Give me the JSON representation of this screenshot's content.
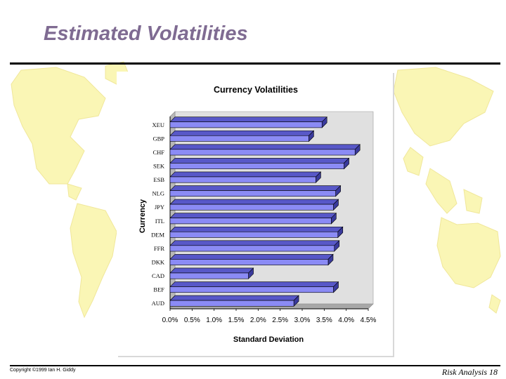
{
  "slide": {
    "title": "Estimated Volatilities",
    "copyright": "Copyright ©1999 Ian H. Giddy",
    "page_label": "Risk Analysis 18"
  },
  "colors": {
    "title": "#7f6b92",
    "bar_face": "#8b8bf5",
    "bar_top": "#5858c8",
    "bar_side": "#3a3a9c",
    "plot_bg": "#e0e0e0",
    "map": "#faf6b5"
  },
  "chart_data": {
    "type": "bar",
    "orientation": "horizontal",
    "title": "Currency Volatilities",
    "xlabel": "Standard Deviation",
    "ylabel": "Currency",
    "categories": [
      "XEU",
      "GBP",
      "CHF",
      "SEK",
      "ESB",
      "NLG",
      "JPY",
      "ITL",
      "DEM",
      "FFR",
      "DKK",
      "CAD",
      "BEF",
      "AUD"
    ],
    "values": [
      0.0345,
      0.0315,
      0.042,
      0.0395,
      0.0331,
      0.0376,
      0.0371,
      0.0366,
      0.0381,
      0.0373,
      0.0359,
      0.0178,
      0.0371,
      0.0281
    ],
    "xlim": [
      0,
      0.045
    ],
    "x_ticks": [
      "0.0%",
      "0.5%",
      "1.0%",
      "1.5%",
      "2.0%",
      "2.5%",
      "3.0%",
      "3.5%",
      "4.0%",
      "4.5%"
    ],
    "grid": false,
    "legend": "none"
  }
}
